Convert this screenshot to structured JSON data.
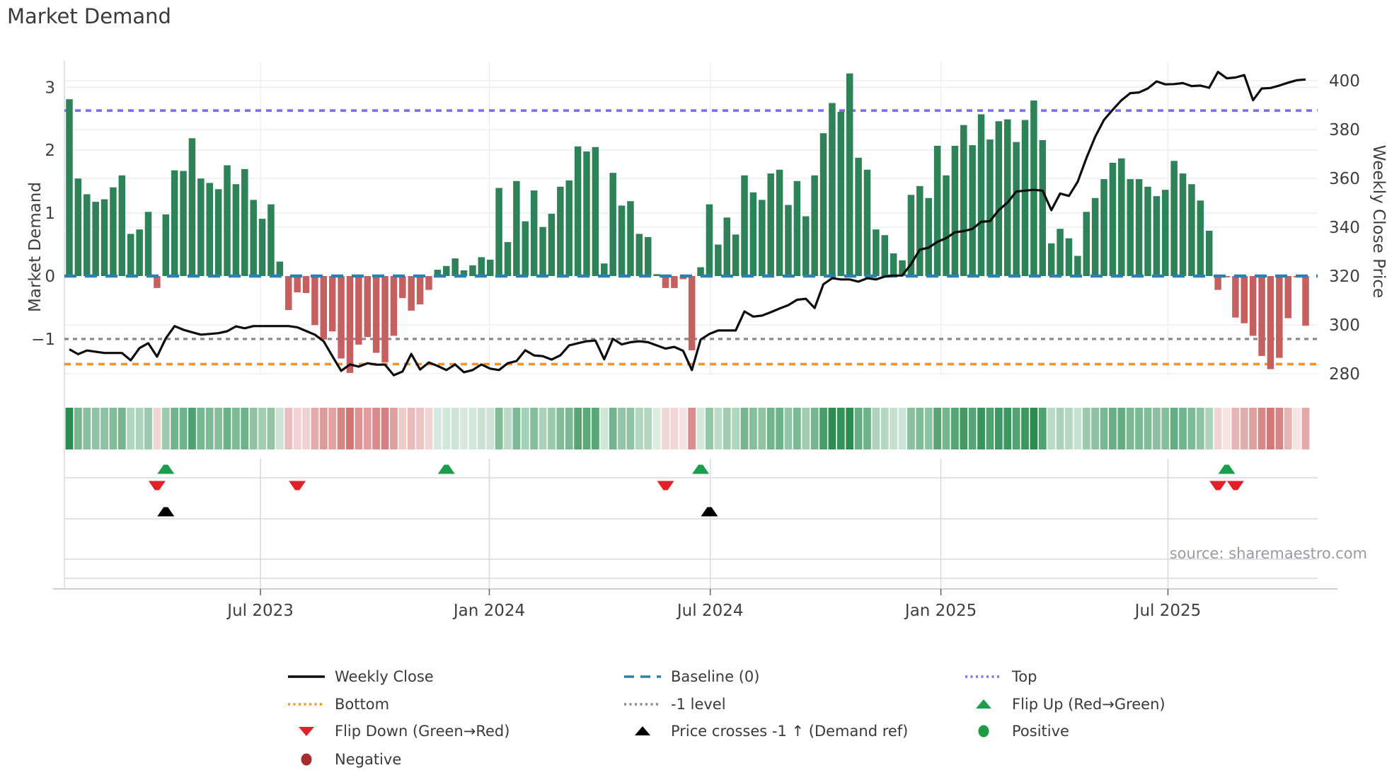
{
  "title": "Market Demand",
  "source": "source: sharemaestro.com",
  "y_axis": {
    "label": "Market Demand",
    "ticks": [
      {
        "v": 3,
        "label": "3"
      },
      {
        "v": 2,
        "label": "2"
      },
      {
        "v": 1,
        "label": "1"
      },
      {
        "v": 0,
        "label": "0"
      },
      {
        "v": -1,
        "label": "−1"
      }
    ]
  },
  "y2_axis": {
    "label": "Weekly Close Price",
    "ticks": [
      {
        "p": 400,
        "label": "400"
      },
      {
        "p": 380,
        "label": "380"
      },
      {
        "p": 360,
        "label": "360"
      },
      {
        "p": 340,
        "label": "340"
      },
      {
        "p": 320,
        "label": "320"
      },
      {
        "p": 300,
        "label": "300"
      },
      {
        "p": 280,
        "label": "280"
      }
    ]
  },
  "x_axis": {
    "ticks": [
      {
        "label": "Jul 2023",
        "i": 21.8
      },
      {
        "label": "Jan 2024",
        "i": 47.9
      },
      {
        "label": "Jul 2024",
        "i": 73.1
      },
      {
        "label": "Jan 2025",
        "i": 99.4
      },
      {
        "label": "Jul 2025",
        "i": 125.3
      }
    ]
  },
  "colors": {
    "bar_positive": "#2e8257",
    "bar_negative": "#c65f5f",
    "weekly_close": "#0d0d0d",
    "baseline": "#2d7fae",
    "top": "#7b70e8",
    "bottom": "#f5941f",
    "minus1": "#8a8a8a",
    "flip_up": "#1b9e4b",
    "flip_down": "#e02128",
    "price_cross": "#000000",
    "positive": "#1f9a44",
    "negative": "#aa2b2b",
    "grid": "#ececf2",
    "panel_grid": "#d9d9dd",
    "axis": "#cfcfcf",
    "tick_text": "#3f3f3f"
  },
  "chart_data": {
    "type": "bar+line+heatmap",
    "title": "Market Demand",
    "ylabel": "Market Demand",
    "y2label": "Weekly Close Price",
    "ylim": [
      -1.55,
      3.4
    ],
    "y2lim": [
      278,
      404
    ],
    "reference_lines": {
      "baseline": 0,
      "top": 2.63,
      "minus1": -1,
      "bottom": -1.4
    },
    "series": [
      {
        "name": "Market Demand (weekly bars)",
        "values": [
          2.81,
          1.55,
          1.3,
          1.18,
          1.22,
          1.41,
          1.6,
          0.67,
          0.74,
          1.02,
          -0.19,
          0.98,
          1.68,
          1.67,
          2.19,
          1.55,
          1.48,
          1.38,
          1.76,
          1.46,
          1.7,
          1.21,
          0.91,
          1.14,
          0.23,
          -0.54,
          -0.26,
          -0.27,
          -0.78,
          -1.01,
          -0.88,
          -1.31,
          -1.54,
          -1.09,
          -0.97,
          -1.22,
          -1.37,
          -0.95,
          -0.35,
          -0.55,
          -0.45,
          -0.22,
          0.1,
          0.16,
          0.28,
          0.09,
          0.17,
          0.3,
          0.26,
          1.4,
          0.54,
          1.51,
          0.87,
          1.36,
          0.78,
          0.99,
          1.42,
          1.52,
          2.06,
          1.98,
          2.05,
          0.2,
          1.64,
          1.12,
          1.19,
          0.67,
          0.62,
          0.03,
          -0.19,
          -0.19,
          -0.05,
          -1.18,
          0.14,
          1.14,
          0.5,
          0.93,
          0.66,
          1.6,
          1.33,
          1.21,
          1.63,
          1.69,
          1.13,
          1.51,
          0.95,
          1.6,
          2.27,
          2.75,
          2.61,
          3.22,
          1.88,
          1.69,
          0.74,
          0.65,
          0.36,
          0.25,
          1.29,
          1.43,
          1.24,
          2.07,
          1.6,
          2.07,
          2.4,
          2.08,
          2.57,
          2.17,
          2.46,
          2.49,
          2.13,
          2.48,
          2.79,
          2.16,
          0.52,
          0.75,
          0.6,
          0.32,
          1.02,
          1.24,
          1.54,
          1.8,
          1.87,
          1.54,
          1.54,
          1.42,
          1.27,
          1.37,
          1.83,
          1.63,
          1.46,
          1.2,
          0.72,
          -0.22,
          -0.02,
          -0.66,
          -0.75,
          -0.95,
          -1.27,
          -1.48,
          -1.3,
          -0.67,
          -0.02,
          -0.79
        ]
      },
      {
        "name": "Weekly Close",
        "values": [
          290,
          288,
          289.5,
          289,
          288.5,
          288.5,
          288.5,
          285.5,
          290.5,
          292.5,
          287,
          294.5,
          299.5,
          298,
          297,
          296,
          296.3,
          296.6,
          297.4,
          299.4,
          298.6,
          299.5,
          299.5,
          299.5,
          299.5,
          299.5,
          299,
          297.5,
          296,
          293.3,
          287.2,
          281.2,
          283.8,
          282.9,
          284.3,
          283.7,
          283.7,
          279.4,
          280.9,
          288.1,
          281.7,
          284.6,
          283.2,
          281.5,
          283.8,
          280.6,
          281.5,
          283.8,
          282.1,
          281.5,
          284.3,
          285.2,
          289.6,
          287.5,
          287.2,
          285.8,
          287.5,
          291.6,
          292.5,
          293.3,
          293.6,
          285.9,
          294.3,
          292,
          292.9,
          293.3,
          292.9,
          291.6,
          290.3,
          291,
          289.4,
          281.5,
          294,
          296.3,
          297.7,
          297.7,
          297.7,
          305.5,
          303.4,
          303.8,
          305.2,
          306.7,
          308.1,
          310.3,
          310.7,
          306.9,
          316.6,
          319.1,
          318.6,
          318.6,
          317.7,
          319.1,
          318.6,
          319.8,
          320.2,
          320.2,
          324.9,
          330.8,
          331.6,
          334,
          335.5,
          337.9,
          338.4,
          339.3,
          342.2,
          342.5,
          347,
          350.1,
          354.6,
          355,
          355.3,
          355,
          347,
          353.8,
          352.8,
          358.6,
          368.3,
          377,
          383.9,
          388.1,
          392,
          394.9,
          395.2,
          396.8,
          399.7,
          398.5,
          398.6,
          399,
          397.8,
          398,
          397.1,
          403.6,
          401,
          401.3,
          402.3,
          392,
          396.8,
          397,
          398,
          399.2,
          400.2,
          400.5
        ]
      }
    ],
    "markers": {
      "flip_up": [
        11,
        43,
        72,
        132
      ],
      "flip_down": [
        10,
        26,
        68,
        131,
        133
      ],
      "price_cross": [
        11,
        73
      ]
    },
    "legend_position": "bottom",
    "grid": true
  },
  "legend": {
    "items": [
      {
        "label": "Weekly Close",
        "type": "line",
        "color_key": "weekly_close"
      },
      {
        "label": "Baseline (0)",
        "type": "dashed",
        "color_key": "baseline"
      },
      {
        "label": "Top",
        "type": "dotted",
        "color_key": "top"
      },
      {
        "label": "Bottom",
        "type": "dotted",
        "color_key": "bottom"
      },
      {
        "label": "-1 level",
        "type": "dotted",
        "color_key": "minus1"
      },
      {
        "label": "Flip Up (Red→Green)",
        "type": "triangle-up",
        "color_key": "flip_up"
      },
      {
        "label": "Flip Down (Green→Red)",
        "type": "triangle-down",
        "color_key": "flip_down"
      },
      {
        "label": "Price crosses -1 ↑ (Demand ref)",
        "type": "triangle-up",
        "color_key": "price_cross"
      },
      {
        "label": "Positive",
        "type": "circle",
        "color_key": "positive"
      },
      {
        "label": "Negative",
        "type": "circle",
        "color_key": "negative"
      }
    ]
  }
}
